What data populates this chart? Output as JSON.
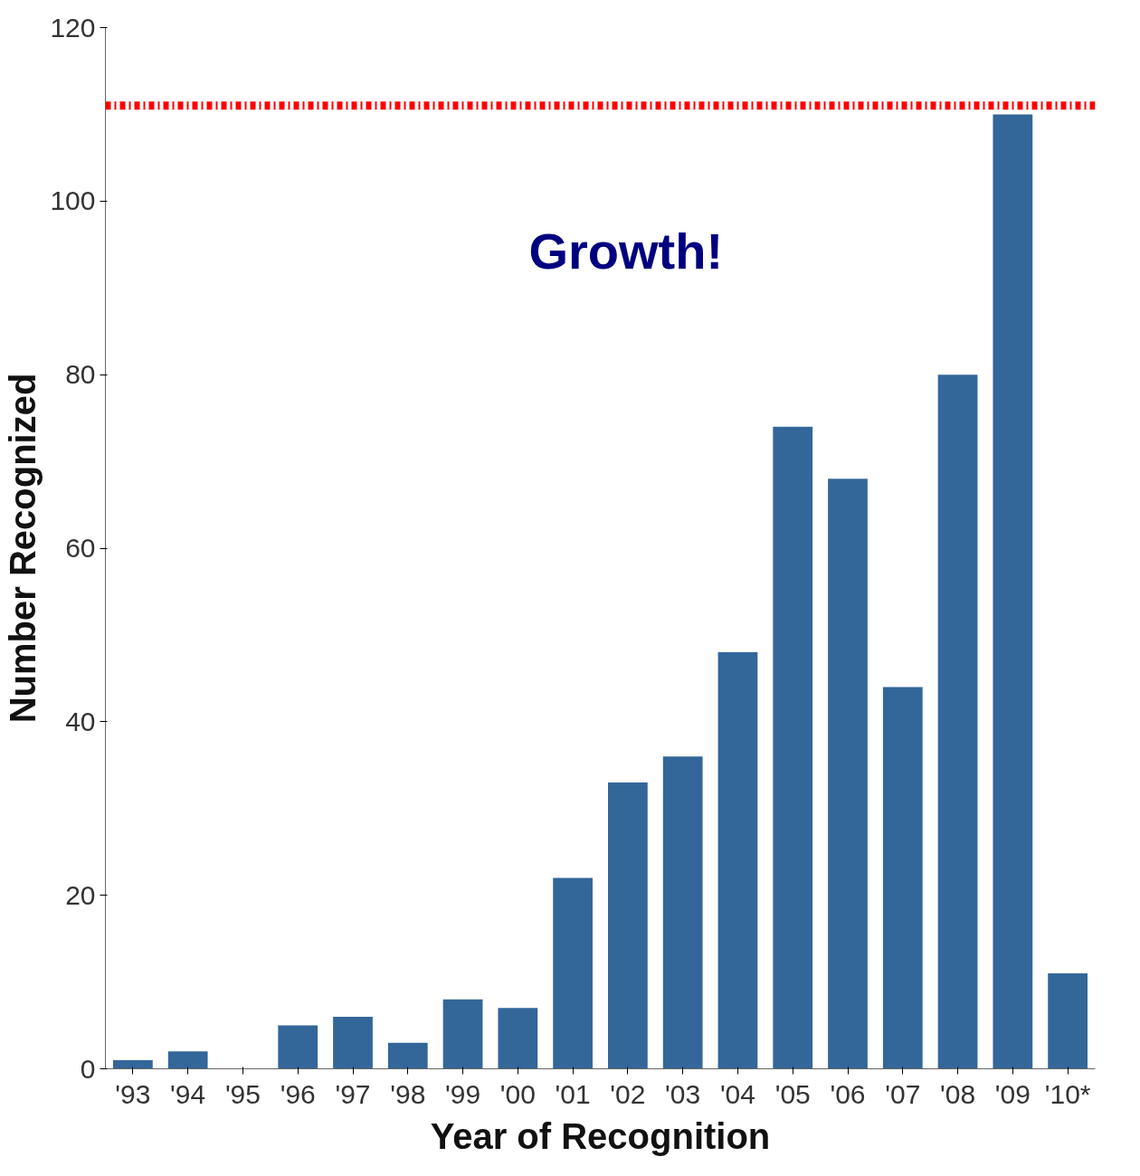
{
  "chart_data": {
    "type": "bar",
    "xlabel": "Year of Recognition",
    "ylabel": "Number Recognized",
    "categories": [
      "'93",
      "'94",
      "'95",
      "'96",
      "'97",
      "'98",
      "'99",
      "'00",
      "'01",
      "'02",
      "'03",
      "'04",
      "'05",
      "'06",
      "'07",
      "'08",
      "'09",
      "'10*"
    ],
    "values": [
      1,
      2,
      0,
      5,
      6,
      3,
      8,
      7,
      22,
      33,
      36,
      48,
      74,
      68,
      44,
      80,
      110,
      11
    ],
    "color": "#336699",
    "ylim": [
      0,
      120
    ],
    "yticks": [
      0,
      20,
      40,
      60,
      80,
      100,
      120
    ],
    "grid": false,
    "ref_lines": [
      {
        "axis": "y",
        "value": 111,
        "label": null,
        "color": "#ff0000",
        "line_style": "dashdot"
      }
    ],
    "annotations": [
      "Growth!"
    ]
  }
}
